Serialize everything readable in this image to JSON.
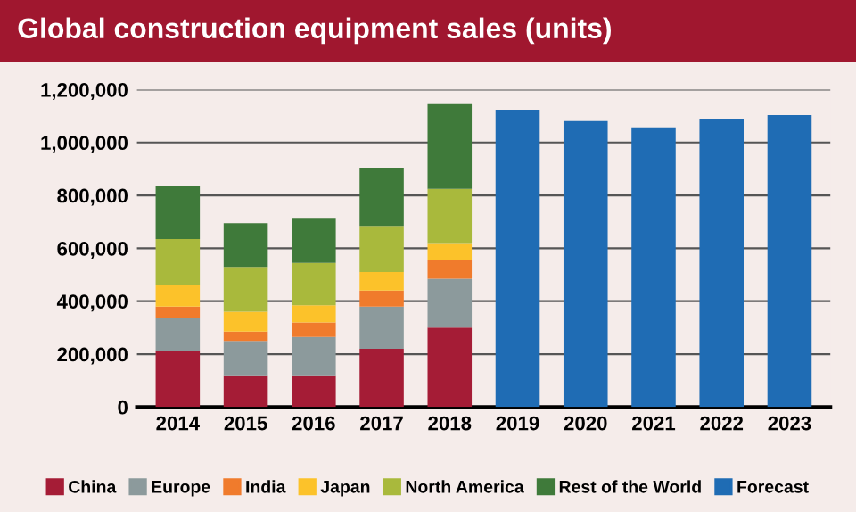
{
  "chart_data": {
    "type": "bar",
    "title": "Global construction equipment sales (units)",
    "categories": [
      "2014",
      "2015",
      "2016",
      "2017",
      "2018",
      "2019",
      "2020",
      "2021",
      "2022",
      "2023"
    ],
    "stacked": true,
    "series": [
      {
        "name": "China",
        "color": "#a51c36",
        "values": [
          210000,
          120000,
          120000,
          220000,
          300000,
          null,
          null,
          null,
          null,
          null
        ]
      },
      {
        "name": "Europe",
        "color": "#8c9a9c",
        "values": [
          125000,
          130000,
          145000,
          160000,
          185000,
          null,
          null,
          null,
          null,
          null
        ]
      },
      {
        "name": "India",
        "color": "#f07b2c",
        "values": [
          45000,
          35000,
          55000,
          60000,
          70000,
          null,
          null,
          null,
          null,
          null
        ]
      },
      {
        "name": "Japan",
        "color": "#fcc22a",
        "values": [
          80000,
          75000,
          65000,
          70000,
          65000,
          null,
          null,
          null,
          null,
          null
        ]
      },
      {
        "name": "North America",
        "color": "#a9b93c",
        "values": [
          175000,
          170000,
          160000,
          175000,
          205000,
          null,
          null,
          null,
          null,
          null
        ]
      },
      {
        "name": "Rest of the World",
        "color": "#3f7a3a",
        "values": [
          200000,
          165000,
          170000,
          220000,
          320000,
          null,
          null,
          null,
          null,
          null
        ]
      },
      {
        "name": "Forecast",
        "color": "#1f6cb4",
        "values": [
          null,
          null,
          null,
          null,
          null,
          1124000,
          1081000,
          1057000,
          1090000,
          1104000
        ]
      }
    ],
    "ylim": [
      0,
      1200000
    ],
    "yticks": [
      {
        "value": 0,
        "label": "0"
      },
      {
        "value": 200000,
        "label": "200,000"
      },
      {
        "value": 400000,
        "label": "400,000"
      },
      {
        "value": 600000,
        "label": "600,000"
      },
      {
        "value": 800000,
        "label": "800,000"
      },
      {
        "value": 1000000,
        "label": "1,000,000"
      },
      {
        "value": 1200000,
        "label": "1,200,000"
      }
    ],
    "grid": "y",
    "legend": "bottom"
  }
}
